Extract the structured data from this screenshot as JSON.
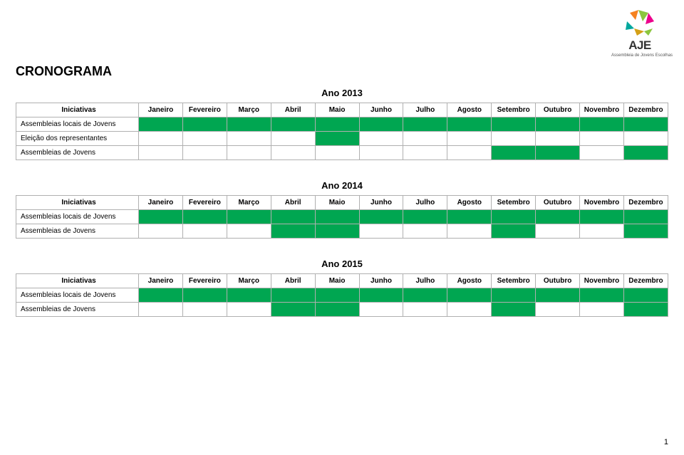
{
  "logo": {
    "letters": "AJE",
    "subtitle": "Assembleia de Jovens Escolhas",
    "colors": {
      "orange": "#f58220",
      "green": "#8cc63f",
      "pink": "#ec008c",
      "teal": "#00a79d",
      "gold": "#d4a017"
    }
  },
  "page_title": "CRONOGRAMA",
  "months": [
    "Janeiro",
    "Fevereiro",
    "Março",
    "Abril",
    "Maio",
    "Junho",
    "Julho",
    "Agosto",
    "Setembro",
    "Outubro",
    "Novembro",
    "Dezembro"
  ],
  "initiatives_header": "Iniciativas",
  "colors": {
    "fill_green": "#00a651",
    "border": "#b0b0b0",
    "background": "#ffffff",
    "text": "#000000"
  },
  "sections": [
    {
      "year_label": "Ano 2013",
      "rows": [
        {
          "label": "Assembleias locais de Jovens",
          "fill": [
            1,
            1,
            1,
            1,
            1,
            1,
            1,
            1,
            1,
            1,
            1,
            1
          ]
        },
        {
          "label": "Eleição dos representantes",
          "fill": [
            0,
            0,
            0,
            0,
            1,
            0,
            0,
            0,
            0,
            0,
            0,
            0
          ]
        },
        {
          "label": "Assembleias de Jovens",
          "fill": [
            0,
            0,
            0,
            0,
            0,
            0,
            0,
            0,
            1,
            1,
            0,
            1
          ]
        }
      ]
    },
    {
      "year_label": "Ano 2014",
      "rows": [
        {
          "label": "Assembleias locais de Jovens",
          "fill": [
            1,
            1,
            1,
            1,
            1,
            1,
            1,
            1,
            1,
            1,
            1,
            1
          ]
        },
        {
          "label": "Assembleias de Jovens",
          "fill": [
            0,
            0,
            0,
            1,
            1,
            0,
            0,
            0,
            1,
            0,
            0,
            1
          ]
        }
      ]
    },
    {
      "year_label": "Ano 2015",
      "rows": [
        {
          "label": "Assembleias locais de Jovens",
          "fill": [
            1,
            1,
            1,
            1,
            1,
            1,
            1,
            1,
            1,
            1,
            1,
            1
          ]
        },
        {
          "label": "Assembleias de Jovens",
          "fill": [
            0,
            0,
            0,
            1,
            1,
            0,
            0,
            0,
            1,
            0,
            0,
            1
          ]
        }
      ]
    }
  ],
  "page_number": "1"
}
